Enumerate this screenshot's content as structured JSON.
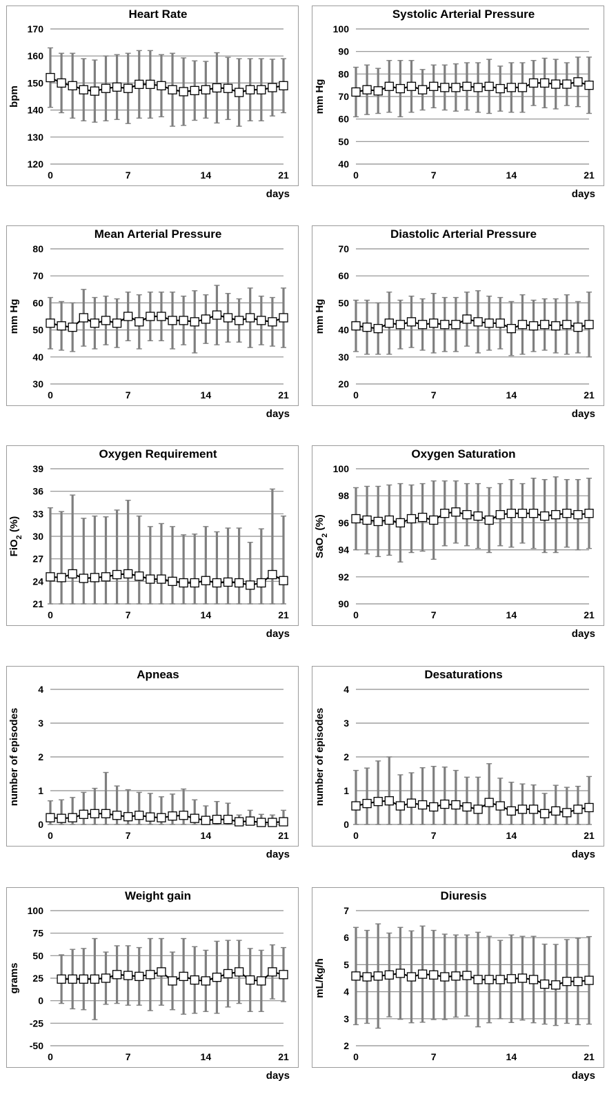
{
  "figure": {
    "background": "#ffffff",
    "grid_color": "#8c8c8c",
    "errorbar_color": "#7f7f7f",
    "line_color": "#000000",
    "marker": "open-square"
  },
  "chart_data": [
    {
      "type": "line",
      "title": "Heart Rate",
      "ylabel": "bpm",
      "xunit": "days",
      "ylim": [
        120,
        170
      ],
      "yticks": [
        "120",
        "130",
        "140",
        "150",
        "160",
        "170"
      ],
      "xlim": [
        0,
        21
      ],
      "xticks": [
        "0",
        "7",
        "14",
        "21"
      ],
      "x": [
        0,
        1,
        2,
        3,
        4,
        5,
        6,
        7,
        8,
        9,
        10,
        11,
        12,
        13,
        14,
        15,
        16,
        17,
        18,
        19,
        20,
        21
      ],
      "values": [
        152,
        150,
        149,
        147.5,
        147,
        148,
        148.5,
        148,
        149.5,
        149.5,
        149,
        147.5,
        146.8,
        147.2,
        147.5,
        148.2,
        148,
        146.5,
        147.5,
        147.5,
        148.3,
        149
      ],
      "error": [
        11,
        11,
        12,
        11.5,
        11.5,
        12,
        12,
        13,
        12.5,
        12.5,
        11.5,
        13.5,
        12.5,
        11,
        10.5,
        13,
        11.5,
        12.5,
        11.5,
        11.5,
        10.5,
        10
      ]
    },
    {
      "type": "line",
      "title": "Systolic Arterial Pressure",
      "ylabel": "mm Hg",
      "xunit": "days",
      "ylim": [
        40,
        100
      ],
      "yticks": [
        "40",
        "50",
        "60",
        "70",
        "80",
        "90",
        "100"
      ],
      "xlim": [
        0,
        21
      ],
      "xticks": [
        "0",
        "7",
        "14",
        "21"
      ],
      "x": [
        0,
        1,
        2,
        3,
        4,
        5,
        6,
        7,
        8,
        9,
        10,
        11,
        12,
        13,
        14,
        15,
        16,
        17,
        18,
        19,
        20,
        21
      ],
      "values": [
        72,
        73,
        72.5,
        74.5,
        73.5,
        74.5,
        73,
        74.5,
        74,
        74,
        74.5,
        74,
        74.5,
        73.5,
        74,
        74,
        76,
        76,
        75.5,
        75.5,
        76.5,
        75
      ],
      "error": [
        11,
        11,
        10,
        11.5,
        12.5,
        11.5,
        9,
        9.5,
        10,
        10.5,
        10.5,
        11,
        12,
        10,
        11,
        11,
        10,
        11,
        11,
        9.5,
        11,
        12.5
      ]
    },
    {
      "type": "line",
      "title": "Mean Arterial Pressure",
      "ylabel": "mm Hg",
      "xunit": "days",
      "ylim": [
        30,
        80
      ],
      "yticks": [
        "30",
        "40",
        "50",
        "60",
        "70",
        "80"
      ],
      "xlim": [
        0,
        21
      ],
      "xticks": [
        "0",
        "7",
        "14",
        "21"
      ],
      "x": [
        0,
        1,
        2,
        3,
        4,
        5,
        6,
        7,
        8,
        9,
        10,
        11,
        12,
        13,
        14,
        15,
        16,
        17,
        18,
        19,
        20,
        21
      ],
      "values": [
        52.5,
        51.5,
        51,
        54.5,
        52.5,
        53.5,
        52.5,
        55,
        53,
        55,
        55,
        53.5,
        53.5,
        53,
        54,
        55.5,
        54.5,
        53.5,
        54.5,
        53.5,
        53,
        54.5
      ],
      "error": [
        9.5,
        9,
        9,
        10.5,
        9.5,
        9,
        9,
        9,
        10,
        9,
        9,
        10.5,
        9,
        11.5,
        9,
        11,
        9,
        8,
        11,
        9,
        9,
        11
      ]
    },
    {
      "type": "line",
      "title": "Diastolic Arterial Pressure",
      "ylabel": "mm Hg",
      "xunit": "days",
      "ylim": [
        20,
        70
      ],
      "yticks": [
        "20",
        "30",
        "40",
        "50",
        "60",
        "70"
      ],
      "xlim": [
        0,
        21
      ],
      "xticks": [
        "0",
        "7",
        "14",
        "21"
      ],
      "x": [
        0,
        1,
        2,
        3,
        4,
        5,
        6,
        7,
        8,
        9,
        10,
        11,
        12,
        13,
        14,
        15,
        16,
        17,
        18,
        19,
        20,
        21
      ],
      "values": [
        41.5,
        41,
        40.5,
        42.5,
        42,
        43,
        42,
        42.5,
        42,
        42,
        44,
        43,
        42.5,
        42.5,
        40.5,
        42,
        41.5,
        42,
        41.5,
        42,
        41,
        42
      ],
      "error": [
        9.5,
        10,
        9.5,
        11.5,
        9,
        9.5,
        9.5,
        11,
        10,
        10,
        10,
        11.5,
        10,
        9.5,
        10,
        11,
        9.5,
        9.5,
        10,
        11,
        9.5,
        12
      ]
    },
    {
      "type": "line",
      "title": "Oxygen Requirement",
      "ylabel": "FiO2 (%)",
      "xunit": "days",
      "ylim": [
        21,
        39
      ],
      "yticks": [
        "21",
        "24",
        "27",
        "30",
        "33",
        "36",
        "39"
      ],
      "xlim": [
        0,
        21
      ],
      "xticks": [
        "0",
        "7",
        "14",
        "21"
      ],
      "x": [
        0,
        1,
        2,
        3,
        4,
        5,
        6,
        7,
        8,
        9,
        10,
        11,
        12,
        13,
        14,
        15,
        16,
        17,
        18,
        19,
        20,
        21
      ],
      "values": [
        24.6,
        24.5,
        25,
        24.4,
        24.5,
        24.6,
        24.9,
        25,
        24.7,
        24.3,
        24.3,
        24,
        23.8,
        23.8,
        24.1,
        23.8,
        23.9,
        23.8,
        23.5,
        23.8,
        24.9,
        24.1
      ],
      "error": [
        9.2,
        8.8,
        10.5,
        8,
        8.2,
        8,
        8.6,
        9.8,
        8,
        7,
        7.4,
        7.3,
        6.4,
        6.5,
        7.2,
        6.8,
        7.2,
        7.3,
        5.7,
        7.2,
        11.4,
        8.6
      ]
    },
    {
      "type": "line",
      "title": "Oxygen Saturation",
      "ylabel": "SaO2 (%)",
      "xunit": "days",
      "ylim": [
        90,
        100
      ],
      "yticks": [
        "90",
        "92",
        "94",
        "96",
        "98",
        "100"
      ],
      "xlim": [
        0,
        21
      ],
      "xticks": [
        "0",
        "7",
        "14",
        "21"
      ],
      "x": [
        0,
        1,
        2,
        3,
        4,
        5,
        6,
        7,
        8,
        9,
        10,
        11,
        12,
        13,
        14,
        15,
        16,
        17,
        18,
        19,
        20,
        21
      ],
      "values": [
        96.3,
        96.2,
        96.1,
        96.2,
        96,
        96.3,
        96.4,
        96.2,
        96.7,
        96.8,
        96.6,
        96.5,
        96.2,
        96.6,
        96.7,
        96.7,
        96.7,
        96.5,
        96.6,
        96.7,
        96.6,
        96.7
      ],
      "error": [
        2.3,
        2.5,
        2.6,
        2.6,
        2.9,
        2.5,
        2.5,
        2.9,
        2.4,
        2.3,
        2.3,
        2.4,
        2.4,
        2.3,
        2.5,
        2.2,
        2.6,
        2.7,
        2.8,
        2.5,
        2.6,
        2.6
      ]
    },
    {
      "type": "line",
      "title": "Apneas",
      "ylabel": "number of episodes",
      "xunit": "days",
      "ylim": [
        0,
        4
      ],
      "yticks": [
        "0",
        "1",
        "2",
        "3",
        "4"
      ],
      "xlim": [
        0,
        21
      ],
      "xticks": [
        "0",
        "7",
        "14",
        "21"
      ],
      "x": [
        0,
        1,
        2,
        3,
        4,
        5,
        6,
        7,
        8,
        9,
        10,
        11,
        12,
        13,
        14,
        15,
        16,
        17,
        18,
        19,
        20,
        21
      ],
      "values": [
        0.2,
        0.18,
        0.2,
        0.3,
        0.32,
        0.32,
        0.27,
        0.23,
        0.27,
        0.22,
        0.2,
        0.25,
        0.27,
        0.18,
        0.12,
        0.15,
        0.15,
        0.08,
        0.1,
        0.06,
        0.06,
        0.08
      ],
      "error": [
        0.5,
        0.55,
        0.6,
        0.65,
        0.75,
        1.22,
        0.87,
        0.8,
        0.68,
        0.7,
        0.62,
        0.65,
        0.78,
        0.55,
        0.43,
        0.53,
        0.48,
        0.2,
        0.32,
        0.24,
        0.22,
        0.34
      ]
    },
    {
      "type": "line",
      "title": "Desaturations",
      "ylabel": "number of episodes",
      "xunit": "days",
      "ylim": [
        0,
        4
      ],
      "yticks": [
        "0",
        "1",
        "2",
        "3",
        "4"
      ],
      "xlim": [
        0,
        21
      ],
      "xticks": [
        "0",
        "7",
        "14",
        "21"
      ],
      "x": [
        0,
        1,
        2,
        3,
        4,
        5,
        6,
        7,
        8,
        9,
        10,
        11,
        12,
        13,
        14,
        15,
        16,
        17,
        18,
        19,
        20,
        21
      ],
      "values": [
        0.55,
        0.62,
        0.68,
        0.7,
        0.55,
        0.63,
        0.58,
        0.52,
        0.6,
        0.58,
        0.52,
        0.45,
        0.65,
        0.55,
        0.4,
        0.45,
        0.45,
        0.32,
        0.4,
        0.35,
        0.45,
        0.5
      ],
      "error": [
        1.05,
        1.05,
        1.2,
        1.3,
        0.92,
        0.9,
        1.1,
        1.2,
        1.1,
        1.02,
        0.88,
        0.95,
        1.15,
        0.82,
        0.85,
        0.75,
        0.72,
        0.6,
        0.76,
        0.75,
        0.68,
        0.92
      ]
    },
    {
      "type": "line",
      "title": "Weight gain",
      "ylabel": "grams",
      "xunit": "days",
      "ylim": [
        -50,
        100
      ],
      "yticks": [
        "-50",
        "-25",
        "0",
        "25",
        "50",
        "75",
        "100"
      ],
      "xlim": [
        0,
        21
      ],
      "xticks": [
        "0",
        "7",
        "14",
        "21"
      ],
      "x": [
        1,
        2,
        3,
        4,
        5,
        6,
        7,
        8,
        9,
        10,
        11,
        12,
        13,
        14,
        15,
        16,
        17,
        18,
        19,
        20,
        21
      ],
      "values": [
        24,
        24,
        24,
        24,
        25,
        29,
        28,
        27,
        29,
        32,
        22,
        27,
        23,
        22,
        26,
        30,
        32,
        23,
        22,
        32,
        29
      ],
      "error": [
        27,
        33,
        34,
        45,
        29,
        32,
        33,
        32,
        40,
        37,
        32,
        42,
        37,
        34,
        40,
        37,
        35,
        35,
        34,
        30,
        30
      ]
    },
    {
      "type": "line",
      "title": "Diuresis",
      "ylabel": "mL/kg/h",
      "xunit": "days",
      "ylim": [
        2,
        7
      ],
      "yticks": [
        "2",
        "3",
        "4",
        "5",
        "6",
        "7"
      ],
      "xlim": [
        0,
        21
      ],
      "xticks": [
        "0",
        "7",
        "14",
        "21"
      ],
      "x": [
        0,
        1,
        2,
        3,
        4,
        5,
        6,
        7,
        8,
        9,
        10,
        11,
        12,
        13,
        14,
        15,
        16,
        17,
        18,
        19,
        20,
        21
      ],
      "values": [
        4.58,
        4.55,
        4.58,
        4.62,
        4.68,
        4.55,
        4.65,
        4.62,
        4.55,
        4.58,
        4.6,
        4.45,
        4.45,
        4.45,
        4.48,
        4.5,
        4.45,
        4.28,
        4.25,
        4.38,
        4.38,
        4.42
      ],
      "error": [
        1.8,
        1.72,
        1.93,
        1.55,
        1.7,
        1.7,
        1.78,
        1.65,
        1.58,
        1.52,
        1.5,
        1.75,
        1.6,
        1.45,
        1.62,
        1.55,
        1.6,
        1.48,
        1.5,
        1.55,
        1.6,
        1.62
      ]
    }
  ]
}
